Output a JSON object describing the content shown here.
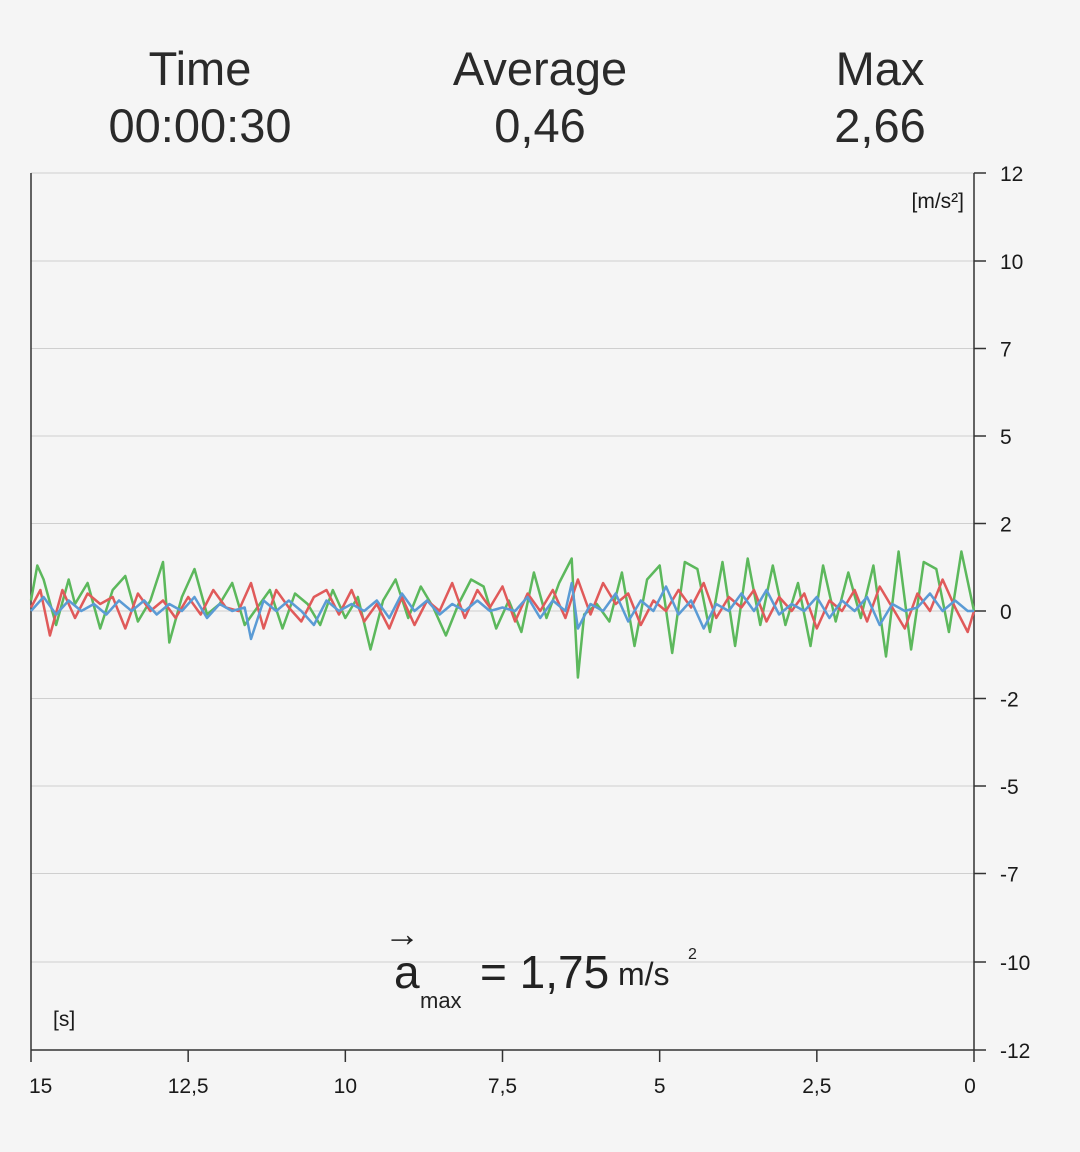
{
  "stats": {
    "time_label": "Time",
    "time_value": "00:00:30",
    "average_label": "Average",
    "average_value": "0,46",
    "max_label": "Max",
    "max_value": "2,66"
  },
  "formula": {
    "arrow": "→",
    "variable": "a",
    "subscript": "max",
    "equals_value": "= 1,75",
    "unit": "m/s",
    "unit_exponent": "2"
  },
  "chart_data": {
    "type": "line",
    "y_unit_label": "[m/s²]",
    "x_unit_label": "[s]",
    "x_range": [
      15,
      0
    ],
    "y_range": [
      -12,
      12
    ],
    "y_ticks": [
      {
        "value": 12,
        "label": "12"
      },
      {
        "value": 10,
        "label": "10"
      },
      {
        "value": 7.5,
        "label": "7"
      },
      {
        "value": 5,
        "label": "5"
      },
      {
        "value": 2.5,
        "label": "2"
      },
      {
        "value": 0,
        "label": "0"
      },
      {
        "value": -2.5,
        "label": "-2"
      },
      {
        "value": -5,
        "label": "-5"
      },
      {
        "value": -7.5,
        "label": "-7"
      },
      {
        "value": -10,
        "label": "-10"
      },
      {
        "value": -12,
        "label": "-12"
      }
    ],
    "x_ticks": [
      {
        "value": 15,
        "label": "15"
      },
      {
        "value": 12.5,
        "label": "12,5"
      },
      {
        "value": 10,
        "label": "10"
      },
      {
        "value": 7.5,
        "label": "7,5"
      },
      {
        "value": 5,
        "label": "5"
      },
      {
        "value": 2.5,
        "label": "2,5"
      },
      {
        "value": 0,
        "label": "0"
      }
    ],
    "grid": true,
    "series": [
      {
        "color": "#5cb85c",
        "points": [
          [
            15.0,
            0.3
          ],
          [
            14.9,
            1.3
          ],
          [
            14.8,
            0.9
          ],
          [
            14.6,
            -0.4
          ],
          [
            14.4,
            0.9
          ],
          [
            14.3,
            0.2
          ],
          [
            14.1,
            0.8
          ],
          [
            13.9,
            -0.5
          ],
          [
            13.7,
            0.6
          ],
          [
            13.5,
            1.0
          ],
          [
            13.3,
            -0.3
          ],
          [
            13.1,
            0.3
          ],
          [
            12.9,
            1.4
          ],
          [
            12.8,
            -0.9
          ],
          [
            12.6,
            0.4
          ],
          [
            12.4,
            1.2
          ],
          [
            12.2,
            -0.1
          ],
          [
            12.0,
            0.2
          ],
          [
            11.8,
            0.8
          ],
          [
            11.6,
            -0.4
          ],
          [
            11.4,
            0.1
          ],
          [
            11.2,
            0.6
          ],
          [
            11.0,
            -0.5
          ],
          [
            10.8,
            0.5
          ],
          [
            10.6,
            0.2
          ],
          [
            10.4,
            -0.4
          ],
          [
            10.2,
            0.6
          ],
          [
            10.0,
            -0.2
          ],
          [
            9.8,
            0.4
          ],
          [
            9.6,
            -1.1
          ],
          [
            9.4,
            0.3
          ],
          [
            9.2,
            0.9
          ],
          [
            9.0,
            -0.2
          ],
          [
            8.8,
            0.7
          ],
          [
            8.6,
            0.1
          ],
          [
            8.4,
            -0.7
          ],
          [
            8.2,
            0.2
          ],
          [
            8.0,
            0.9
          ],
          [
            7.8,
            0.7
          ],
          [
            7.6,
            -0.5
          ],
          [
            7.4,
            0.3
          ],
          [
            7.2,
            -0.6
          ],
          [
            7.0,
            1.1
          ],
          [
            6.8,
            -0.2
          ],
          [
            6.6,
            0.8
          ],
          [
            6.4,
            1.5
          ],
          [
            6.3,
            -1.9
          ],
          [
            6.2,
            -0.1
          ],
          [
            6.0,
            0.2
          ],
          [
            5.8,
            -0.3
          ],
          [
            5.6,
            1.1
          ],
          [
            5.4,
            -1.0
          ],
          [
            5.2,
            0.9
          ],
          [
            5.0,
            1.3
          ],
          [
            4.8,
            -1.2
          ],
          [
            4.6,
            1.4
          ],
          [
            4.4,
            1.2
          ],
          [
            4.2,
            -0.6
          ],
          [
            4.0,
            1.4
          ],
          [
            3.8,
            -1.0
          ],
          [
            3.6,
            1.5
          ],
          [
            3.4,
            -0.4
          ],
          [
            3.2,
            1.3
          ],
          [
            3.0,
            -0.4
          ],
          [
            2.8,
            0.8
          ],
          [
            2.6,
            -1.0
          ],
          [
            2.4,
            1.3
          ],
          [
            2.2,
            -0.3
          ],
          [
            2.0,
            1.1
          ],
          [
            1.8,
            -0.2
          ],
          [
            1.6,
            1.3
          ],
          [
            1.4,
            -1.3
          ],
          [
            1.2,
            1.7
          ],
          [
            1.0,
            -1.1
          ],
          [
            0.8,
            1.4
          ],
          [
            0.6,
            1.2
          ],
          [
            0.4,
            -0.6
          ],
          [
            0.2,
            1.7
          ],
          [
            0.0,
            0.0
          ]
        ]
      },
      {
        "color": "#e05a5a",
        "points": [
          [
            15.0,
            0.1
          ],
          [
            14.85,
            0.6
          ],
          [
            14.7,
            -0.7
          ],
          [
            14.5,
            0.6
          ],
          [
            14.3,
            -0.2
          ],
          [
            14.1,
            0.5
          ],
          [
            13.9,
            0.2
          ],
          [
            13.7,
            0.4
          ],
          [
            13.5,
            -0.5
          ],
          [
            13.3,
            0.5
          ],
          [
            13.1,
            0.0
          ],
          [
            12.9,
            0.3
          ],
          [
            12.7,
            -0.2
          ],
          [
            12.5,
            0.4
          ],
          [
            12.3,
            -0.1
          ],
          [
            12.1,
            0.6
          ],
          [
            11.9,
            0.1
          ],
          [
            11.7,
            0.0
          ],
          [
            11.5,
            0.8
          ],
          [
            11.3,
            -0.5
          ],
          [
            11.1,
            0.6
          ],
          [
            10.9,
            0.1
          ],
          [
            10.7,
            -0.3
          ],
          [
            10.5,
            0.4
          ],
          [
            10.3,
            0.6
          ],
          [
            10.1,
            -0.1
          ],
          [
            9.9,
            0.6
          ],
          [
            9.7,
            -0.3
          ],
          [
            9.5,
            0.2
          ],
          [
            9.3,
            -0.5
          ],
          [
            9.1,
            0.4
          ],
          [
            8.9,
            -0.4
          ],
          [
            8.7,
            0.3
          ],
          [
            8.5,
            0.0
          ],
          [
            8.3,
            0.8
          ],
          [
            8.1,
            -0.2
          ],
          [
            7.9,
            0.6
          ],
          [
            7.7,
            0.1
          ],
          [
            7.5,
            0.7
          ],
          [
            7.3,
            -0.3
          ],
          [
            7.1,
            0.5
          ],
          [
            6.9,
            0.0
          ],
          [
            6.7,
            0.6
          ],
          [
            6.5,
            -0.2
          ],
          [
            6.3,
            0.9
          ],
          [
            6.1,
            -0.1
          ],
          [
            5.9,
            0.8
          ],
          [
            5.7,
            0.2
          ],
          [
            5.5,
            0.5
          ],
          [
            5.3,
            -0.4
          ],
          [
            5.1,
            0.3
          ],
          [
            4.9,
            0.0
          ],
          [
            4.7,
            0.6
          ],
          [
            4.5,
            0.1
          ],
          [
            4.3,
            0.8
          ],
          [
            4.1,
            -0.2
          ],
          [
            3.9,
            0.4
          ],
          [
            3.7,
            0.1
          ],
          [
            3.5,
            0.6
          ],
          [
            3.3,
            -0.3
          ],
          [
            3.1,
            0.4
          ],
          [
            2.9,
            0.0
          ],
          [
            2.7,
            0.5
          ],
          [
            2.5,
            -0.5
          ],
          [
            2.3,
            0.3
          ],
          [
            2.1,
            0.0
          ],
          [
            1.9,
            0.6
          ],
          [
            1.7,
            -0.3
          ],
          [
            1.5,
            0.7
          ],
          [
            1.3,
            0.1
          ],
          [
            1.1,
            -0.5
          ],
          [
            0.9,
            0.5
          ],
          [
            0.7,
            0.0
          ],
          [
            0.5,
            0.9
          ],
          [
            0.3,
            0.1
          ],
          [
            0.1,
            -0.6
          ],
          [
            0.0,
            0.0
          ]
        ]
      },
      {
        "color": "#5b9bd5",
        "points": [
          [
            15.0,
            0.0
          ],
          [
            14.8,
            0.4
          ],
          [
            14.6,
            -0.1
          ],
          [
            14.4,
            0.3
          ],
          [
            14.2,
            0.0
          ],
          [
            14.0,
            0.2
          ],
          [
            13.8,
            -0.1
          ],
          [
            13.6,
            0.3
          ],
          [
            13.4,
            0.0
          ],
          [
            13.2,
            0.3
          ],
          [
            13.0,
            -0.1
          ],
          [
            12.8,
            0.2
          ],
          [
            12.6,
            0.0
          ],
          [
            12.4,
            0.4
          ],
          [
            12.2,
            -0.2
          ],
          [
            12.0,
            0.2
          ],
          [
            11.8,
            0.0
          ],
          [
            11.6,
            0.1
          ],
          [
            11.5,
            -0.8
          ],
          [
            11.3,
            0.3
          ],
          [
            11.1,
            0.0
          ],
          [
            10.9,
            0.3
          ],
          [
            10.7,
            0.0
          ],
          [
            10.5,
            -0.4
          ],
          [
            10.3,
            0.3
          ],
          [
            10.1,
            0.0
          ],
          [
            9.9,
            0.2
          ],
          [
            9.7,
            0.0
          ],
          [
            9.5,
            0.3
          ],
          [
            9.3,
            -0.2
          ],
          [
            9.1,
            0.5
          ],
          [
            8.9,
            0.0
          ],
          [
            8.7,
            0.3
          ],
          [
            8.5,
            -0.1
          ],
          [
            8.3,
            0.2
          ],
          [
            8.1,
            0.0
          ],
          [
            7.9,
            0.3
          ],
          [
            7.7,
            0.0
          ],
          [
            7.5,
            0.1
          ],
          [
            7.3,
            0.0
          ],
          [
            7.1,
            0.4
          ],
          [
            6.9,
            -0.2
          ],
          [
            6.7,
            0.3
          ],
          [
            6.5,
            0.0
          ],
          [
            6.4,
            0.8
          ],
          [
            6.3,
            -0.5
          ],
          [
            6.1,
            0.2
          ],
          [
            5.9,
            0.0
          ],
          [
            5.7,
            0.5
          ],
          [
            5.5,
            -0.3
          ],
          [
            5.3,
            0.3
          ],
          [
            5.1,
            0.0
          ],
          [
            4.9,
            0.7
          ],
          [
            4.7,
            -0.1
          ],
          [
            4.5,
            0.3
          ],
          [
            4.3,
            -0.5
          ],
          [
            4.1,
            0.2
          ],
          [
            3.9,
            0.0
          ],
          [
            3.7,
            0.5
          ],
          [
            3.5,
            0.0
          ],
          [
            3.3,
            0.6
          ],
          [
            3.1,
            -0.1
          ],
          [
            2.9,
            0.2
          ],
          [
            2.7,
            0.0
          ],
          [
            2.5,
            0.4
          ],
          [
            2.3,
            -0.2
          ],
          [
            2.1,
            0.3
          ],
          [
            1.9,
            0.0
          ],
          [
            1.7,
            0.4
          ],
          [
            1.5,
            -0.4
          ],
          [
            1.3,
            0.2
          ],
          [
            1.1,
            0.0
          ],
          [
            0.9,
            0.1
          ],
          [
            0.7,
            0.5
          ],
          [
            0.5,
            0.0
          ],
          [
            0.3,
            0.3
          ],
          [
            0.1,
            0.0
          ],
          [
            0.0,
            0.0
          ]
        ]
      }
    ]
  }
}
